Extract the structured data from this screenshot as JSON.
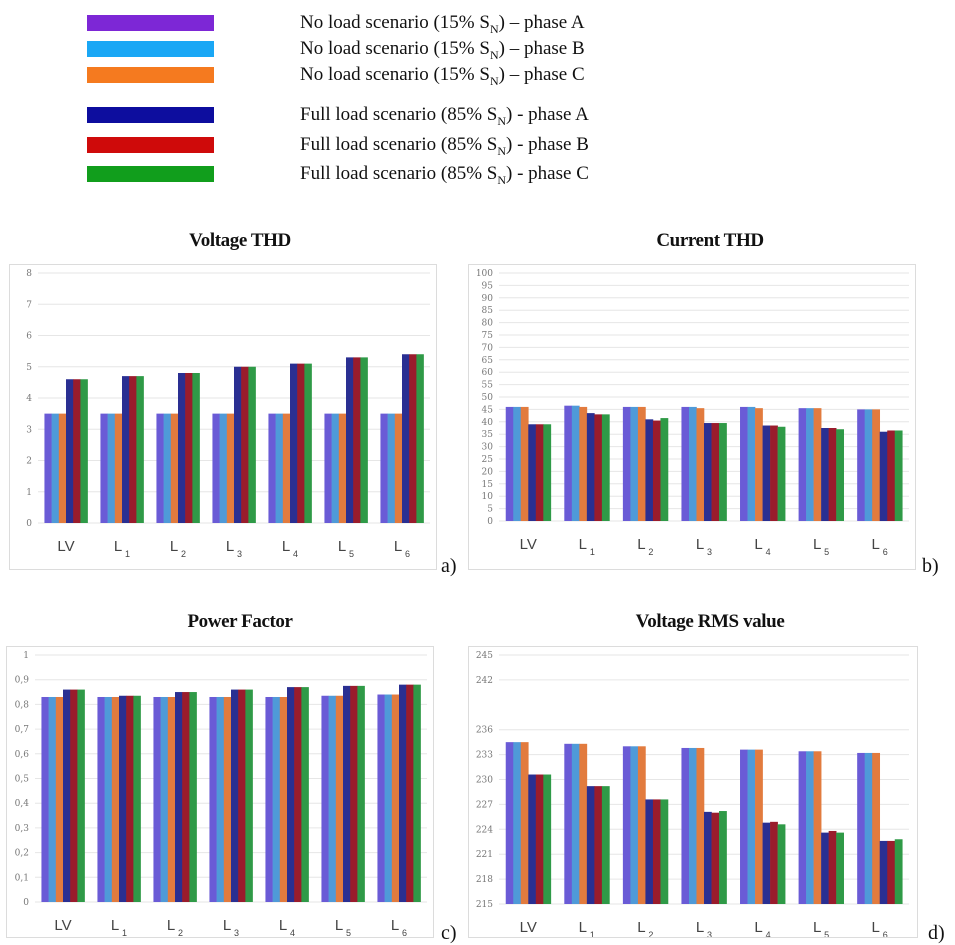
{
  "legend": [
    {
      "name": "No load scenario (15% S_N) – phase A",
      "pre": "No load scenario (15% S",
      "sub": "N",
      "post": ") – phase A",
      "color": "#7d27d6"
    },
    {
      "name": "No load scenario (15% S_N) – phase B",
      "pre": "No load scenario (15% S",
      "sub": "N",
      "post": ") – phase B",
      "color": "#1aa7f5"
    },
    {
      "name": "No load scenario (15% S_N) – phase C",
      "pre": "No load scenario (15% S",
      "sub": "N",
      "post": ") – phase C",
      "color": "#f57a1f"
    },
    {
      "name": "Full load scenario (85% S_N) - phase A",
      "pre": "Full load scenario (85% S",
      "sub": "N",
      "post": ") - phase A",
      "color": "#0d0d9e"
    },
    {
      "name": "Full load scenario (85% S_N) - phase B",
      "pre": "Full load scenario (85% S",
      "sub": "N",
      "post": ") - phase B",
      "color": "#cf0a0a"
    },
    {
      "name": "Full load scenario (85% S_N) - phase C",
      "pre": "Full load scenario (85% S",
      "sub": "N",
      "post": ") - phase C",
      "color": "#119e1c"
    }
  ],
  "categories": [
    {
      "main": "LV",
      "sub": ""
    },
    {
      "main": "L",
      "sub": "1"
    },
    {
      "main": "L",
      "sub": "2"
    },
    {
      "main": "L",
      "sub": "3"
    },
    {
      "main": "L",
      "sub": "4"
    },
    {
      "main": "L",
      "sub": "5"
    },
    {
      "main": "L",
      "sub": "6"
    }
  ],
  "bar_colors": [
    "#6a5bd6",
    "#4f9ad8",
    "#e27b3e",
    "#2a2f92",
    "#9a1c2c",
    "#2f9a47"
  ],
  "chart_data": [
    {
      "type": "bar",
      "title": "Voltage THD",
      "panel": "a)",
      "categories": [
        "LV",
        "L1",
        "L2",
        "L3",
        "L4",
        "L5",
        "L6"
      ],
      "ylim": [
        0,
        8
      ],
      "yticks": [
        0,
        1,
        2,
        3,
        4,
        5,
        6,
        7,
        8
      ],
      "grid": true,
      "series": [
        {
          "name": "No load scenario (15% S_N) – phase A",
          "values": [
            3.5,
            3.5,
            3.5,
            3.5,
            3.5,
            3.5,
            3.5
          ]
        },
        {
          "name": "No load scenario (15% S_N) – phase B",
          "values": [
            3.5,
            3.5,
            3.5,
            3.5,
            3.5,
            3.5,
            3.5
          ]
        },
        {
          "name": "No load scenario (15% S_N) – phase C",
          "values": [
            3.5,
            3.5,
            3.5,
            3.5,
            3.5,
            3.5,
            3.5
          ]
        },
        {
          "name": "Full load scenario (85% S_N) - phase A",
          "values": [
            4.6,
            4.7,
            4.8,
            5.0,
            5.1,
            5.3,
            5.4
          ]
        },
        {
          "name": "Full load scenario (85% S_N) - phase B",
          "values": [
            4.6,
            4.7,
            4.8,
            5.0,
            5.1,
            5.3,
            5.4
          ]
        },
        {
          "name": "Full load scenario (85% S_N) - phase C",
          "values": [
            4.6,
            4.7,
            4.8,
            5.0,
            5.1,
            5.3,
            5.4
          ]
        }
      ]
    },
    {
      "type": "bar",
      "title": "Current THD",
      "panel": "b)",
      "categories": [
        "LV",
        "L1",
        "L2",
        "L3",
        "L4",
        "L5",
        "L6"
      ],
      "ylim": [
        0,
        100
      ],
      "yticks": [
        0,
        5,
        10,
        15,
        20,
        25,
        30,
        35,
        40,
        45,
        50,
        55,
        60,
        65,
        70,
        75,
        80,
        85,
        90,
        95,
        100
      ],
      "grid": true,
      "series": [
        {
          "name": "No load scenario (15% S_N) – phase A",
          "values": [
            46,
            46.5,
            46,
            46,
            46,
            45.5,
            45
          ]
        },
        {
          "name": "No load scenario (15% S_N) – phase B",
          "values": [
            46,
            46.5,
            46,
            46,
            46,
            45.5,
            45
          ]
        },
        {
          "name": "No load scenario (15% S_N) – phase C",
          "values": [
            46,
            46,
            46,
            45.5,
            45.5,
            45.5,
            45
          ]
        },
        {
          "name": "Full load scenario (85% S_N) - phase A",
          "values": [
            39,
            43.5,
            41,
            39.5,
            38.5,
            37.5,
            36
          ]
        },
        {
          "name": "Full load scenario (85% S_N) - phase B",
          "values": [
            39,
            43,
            40.5,
            39.5,
            38.5,
            37.5,
            36.5
          ]
        },
        {
          "name": "Full load scenario (85% S_N) - phase C",
          "values": [
            39,
            43,
            41.5,
            39.5,
            38,
            37,
            36.5
          ]
        }
      ]
    },
    {
      "type": "bar",
      "title": "Power Factor",
      "panel": "c)",
      "categories": [
        "LV",
        "L1",
        "L2",
        "L3",
        "L4",
        "L5",
        "L6"
      ],
      "ylim": [
        0,
        1
      ],
      "yticks": [
        "0",
        "0,1",
        "0,2",
        "0,3",
        "0,4",
        "0,5",
        "0,6",
        "0,7",
        "0,8",
        "0,9",
        "1"
      ],
      "grid": true,
      "series": [
        {
          "name": "No load scenario (15% S_N) – phase A",
          "values": [
            0.83,
            0.83,
            0.83,
            0.83,
            0.83,
            0.835,
            0.84
          ]
        },
        {
          "name": "No load scenario (15% S_N) – phase B",
          "values": [
            0.83,
            0.83,
            0.83,
            0.83,
            0.83,
            0.835,
            0.84
          ]
        },
        {
          "name": "No load scenario (15% S_N) – phase C",
          "values": [
            0.83,
            0.83,
            0.83,
            0.83,
            0.83,
            0.835,
            0.84
          ]
        },
        {
          "name": "Full load scenario (85% S_N) - phase A",
          "values": [
            0.86,
            0.835,
            0.85,
            0.86,
            0.87,
            0.875,
            0.88
          ]
        },
        {
          "name": "Full load scenario (85% S_N) - phase B",
          "values": [
            0.86,
            0.835,
            0.85,
            0.86,
            0.87,
            0.875,
            0.88
          ]
        },
        {
          "name": "Full load scenario (85% S_N) - phase C",
          "values": [
            0.86,
            0.835,
            0.85,
            0.86,
            0.87,
            0.875,
            0.88
          ]
        }
      ]
    },
    {
      "type": "bar",
      "title": "Voltage RMS value",
      "panel": "d)",
      "categories": [
        "LV",
        "L1",
        "L2",
        "L3",
        "L4",
        "L5",
        "L6"
      ],
      "ylim": [
        215,
        245
      ],
      "yticks": [
        215,
        218,
        221,
        224,
        227,
        230,
        233,
        236,
        242,
        245
      ],
      "grid": true,
      "series": [
        {
          "name": "No load scenario (15% S_N) – phase A",
          "values": [
            234.5,
            234.3,
            234,
            233.8,
            233.6,
            233.4,
            233.2
          ]
        },
        {
          "name": "No load scenario (15% S_N) – phase B",
          "values": [
            234.5,
            234.3,
            234,
            233.8,
            233.6,
            233.4,
            233.2
          ]
        },
        {
          "name": "No load scenario (15% S_N) – phase C",
          "values": [
            234.5,
            234.3,
            234,
            233.8,
            233.6,
            233.4,
            233.2
          ]
        },
        {
          "name": "Full load scenario (85% S_N) - phase A",
          "values": [
            230.6,
            229.2,
            227.6,
            226.1,
            224.8,
            223.6,
            222.6
          ]
        },
        {
          "name": "Full load scenario (85% S_N) - phase B",
          "values": [
            230.6,
            229.2,
            227.6,
            226.0,
            224.9,
            223.8,
            222.6
          ]
        },
        {
          "name": "Full load scenario (85% S_N) - phase C",
          "values": [
            230.6,
            229.2,
            227.6,
            226.2,
            224.6,
            223.6,
            222.8
          ]
        }
      ]
    }
  ]
}
